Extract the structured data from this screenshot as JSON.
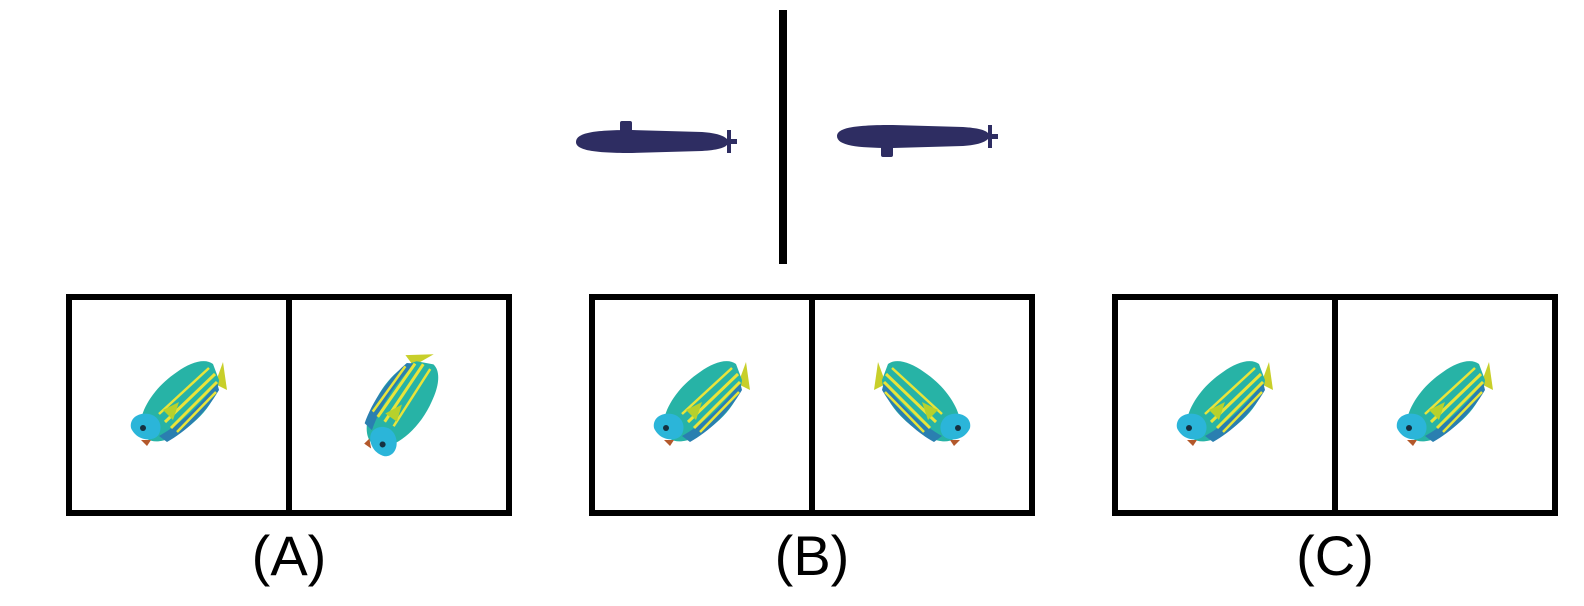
{
  "options": [
    {
      "label": "(A)"
    },
    {
      "label": "(B)"
    },
    {
      "label": "(C)"
    }
  ],
  "icons": {
    "reference_object": "submarine-icon",
    "choice_object": "fish-icon"
  },
  "colors": {
    "submarine": "#2e2d62",
    "fish_body": "#27b3a6",
    "fish_head": "#2bb5d9",
    "fish_fin": "#c8cf2a",
    "fish_stripe": "#e9e43a",
    "border": "#000000"
  }
}
